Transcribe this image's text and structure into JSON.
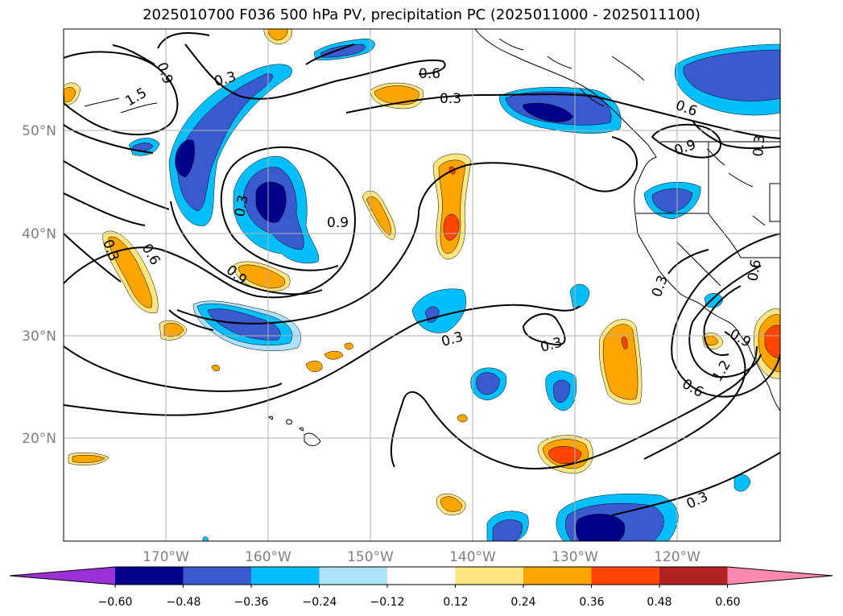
{
  "title": "2025010700 F036 500 hPa PV, precipitation PC (2025011000 - 2025011100)",
  "map": {
    "lat_ticks": [
      "50°N",
      "40°N",
      "30°N",
      "20°N"
    ],
    "lon_ticks": [
      "170°W",
      "160°W",
      "150°W",
      "140°W",
      "130°W",
      "120°W"
    ],
    "gridlines": true,
    "contour_labels": [
      "1.5",
      "0.9",
      "0.3",
      "0.6",
      "0.3",
      "0.6",
      "0.9",
      "0.3",
      "0.9",
      "0.3",
      "0.6",
      "0.9",
      "0.3",
      "0.3",
      "0.3",
      "0.9",
      "1.2",
      "0.6",
      "0.3",
      "0.6",
      "0.3"
    ]
  },
  "colorbar": {
    "colors": [
      "#9b30d6",
      "#00008b",
      "#3a5bd0",
      "#00bfff",
      "#aee1fa",
      "#ffffff",
      "#ffe680",
      "#ffa500",
      "#ff4500",
      "#b22222",
      "#ff88b0"
    ],
    "tick_labels": [
      "−0.60",
      "−0.48",
      "−0.36",
      "−0.24",
      "−0.12",
      "0.12",
      "0.24",
      "0.36",
      "0.48",
      "0.60"
    ]
  }
}
